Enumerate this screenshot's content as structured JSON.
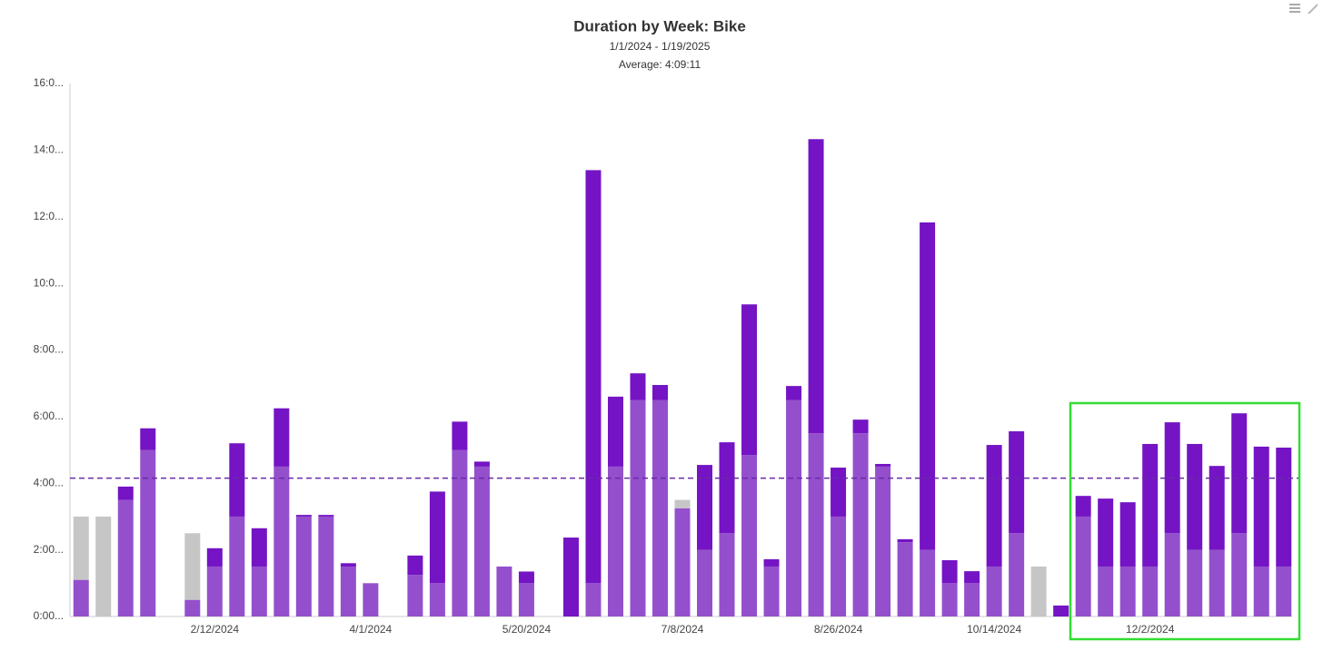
{
  "chart_data": {
    "type": "stacked_bar",
    "title": "Duration by Week: Bike",
    "subtitle": "1/1/2024 - 1/19/2025",
    "average_label": "Average: 4:09:11",
    "average": 4.153,
    "average_color": "#6a2aa8",
    "categories": [
      null,
      null,
      null,
      null,
      null,
      null,
      "2/12/2024",
      null,
      null,
      null,
      null,
      null,
      null,
      "4/1/2024",
      null,
      null,
      null,
      null,
      null,
      null,
      "5/20/2024",
      null,
      null,
      null,
      null,
      null,
      null,
      "7/8/2024",
      null,
      null,
      null,
      null,
      null,
      null,
      "8/26/2024",
      null,
      null,
      null,
      null,
      null,
      null,
      "10/14/2024",
      null,
      null,
      null,
      null,
      null,
      null,
      "12/2/2024",
      null,
      null,
      null,
      null,
      null,
      null
    ],
    "series": [
      {
        "color": "#9450cc",
        "values": [
          1.1,
          0,
          3.5,
          5.0,
          0,
          0.5,
          1.5,
          3.0,
          1.5,
          4.5,
          3.0,
          3.0,
          1.5,
          1.0,
          0,
          1.25,
          1.0,
          5.0,
          4.5,
          1.5,
          1.0,
          0,
          0,
          1.0,
          4.5,
          6.5,
          6.5,
          3.25,
          2.0,
          2.5,
          4.85,
          1.5,
          6.5,
          5.5,
          3.0,
          5.5,
          4.5,
          2.23,
          2.0,
          1.0,
          1.0,
          1.5,
          2.5,
          0,
          0,
          3.0,
          1.5,
          1.5,
          1.5,
          2.5,
          2.0,
          2.0,
          2.5,
          1.5,
          1.5
        ]
      },
      {
        "color": "#7414c4",
        "values": [
          0,
          0,
          0.4,
          0.65,
          0,
          0,
          0.55,
          2.2,
          1.15,
          1.75,
          0.05,
          0.05,
          0.1,
          0,
          0,
          0.58,
          2.75,
          0.85,
          0.15,
          0,
          0.35,
          0,
          2.37,
          12.4,
          2.1,
          0.8,
          0.45,
          0,
          2.55,
          2.73,
          4.52,
          0.22,
          0.42,
          8.83,
          1.47,
          0.41,
          0.08,
          0.09,
          9.83,
          0.69,
          0.36,
          3.65,
          3.06,
          0,
          0.33,
          0.62,
          2.04,
          1.93,
          3.68,
          3.33,
          3.18,
          2.52,
          3.6,
          3.6,
          3.57
        ]
      },
      {
        "color": "#c6c6c6",
        "values": [
          1.9,
          3.0,
          0,
          0,
          0,
          2.0,
          0,
          0,
          0,
          0,
          0,
          0,
          0,
          0,
          0,
          0,
          0,
          0,
          0,
          0,
          0,
          0,
          0,
          0,
          0,
          0,
          0,
          0.25,
          0,
          0,
          0,
          0,
          0,
          0,
          0,
          0,
          0,
          0,
          0,
          0,
          0,
          0,
          0,
          1.5,
          0,
          0,
          0,
          0,
          0,
          0,
          0,
          0,
          0,
          0,
          0
        ]
      }
    ],
    "ylim": [
      0,
      16
    ],
    "yticks": [
      {
        "value": 0,
        "label": "0:00..."
      },
      {
        "value": 2,
        "label": "2:00..."
      },
      {
        "value": 4,
        "label": "4:00..."
      },
      {
        "value": 6,
        "label": "6:00..."
      },
      {
        "value": 8,
        "label": "8:00..."
      },
      {
        "value": 10,
        "label": "10:0..."
      },
      {
        "value": 12,
        "label": "12:0..."
      },
      {
        "value": 14,
        "label": "14:0..."
      },
      {
        "value": 16,
        "label": "16:0..."
      }
    ],
    "grid": false
  }
}
